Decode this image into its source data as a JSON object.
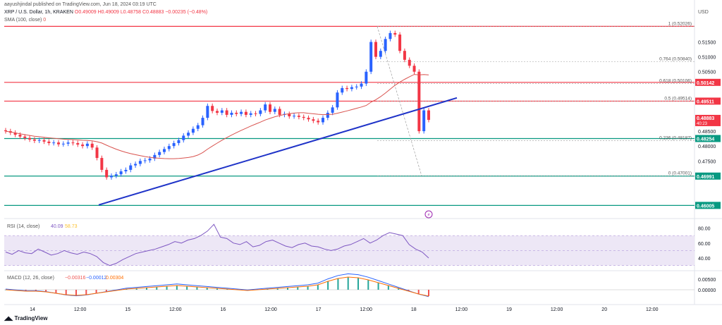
{
  "header": {
    "published_by": "aayushjindal published on TradingView.com, Jun 18, 2024 03:19 UTC",
    "symbol_line": "XRP / U.S. Dollar, 1h, KRAKEN",
    "ohlc": "O0.49009 H0.49009 L0.48758 C0.48883 −0.00235 (−0.48%)",
    "sma_label": "SMA (100, close)",
    "sma_value": "0",
    "currency": "USD"
  },
  "footer": {
    "brand": "TradingView"
  },
  "colors": {
    "up": "#2962ff",
    "down": "#f23645",
    "support": "#089981",
    "resistance": "#f23645",
    "trendline": "#1f33c8",
    "sma": "#d9534f",
    "rsi": "#7e57c2",
    "rsi_band": "#ede7f6",
    "macd": "#2962ff",
    "signal": "#ff6d00"
  },
  "chart_data": [
    {
      "type": "candlestick",
      "title": "XRP / U.S. Dollar, 1h, KRAKEN",
      "ylim": [
        0.458,
        0.522
      ],
      "y_ticks": [
        "0.51500",
        "0.51000",
        "0.50500",
        "0.49000",
        "0.48500",
        "0.48000",
        "0.47500"
      ],
      "x_ticks": [
        "14",
        "12:00",
        "15",
        "12:00",
        "16",
        "12:00",
        "17",
        "12:00",
        "18",
        "12:00",
        "19",
        "12:00",
        "20",
        "12:00"
      ],
      "candles_close": [
        0.485,
        0.4845,
        0.4838,
        0.4832,
        0.4827,
        0.4822,
        0.4818,
        0.482,
        0.4815,
        0.481,
        0.4812,
        0.4806,
        0.4808,
        0.4812,
        0.481,
        0.4805,
        0.48,
        0.4808,
        0.4795,
        0.476,
        0.472,
        0.4695,
        0.47,
        0.4705,
        0.4715,
        0.472,
        0.4735,
        0.474,
        0.475,
        0.4752,
        0.4758,
        0.477,
        0.478,
        0.479,
        0.48,
        0.481,
        0.482,
        0.4835,
        0.4845,
        0.4858,
        0.487,
        0.4895,
        0.4935,
        0.4918,
        0.4912,
        0.492,
        0.4905,
        0.4912,
        0.4908,
        0.4915,
        0.4905,
        0.491,
        0.4908,
        0.492,
        0.494,
        0.4915,
        0.4925,
        0.4905,
        0.4908,
        0.49,
        0.4902,
        0.4898,
        0.4895,
        0.489,
        0.4885,
        0.488,
        0.4895,
        0.4912,
        0.493,
        0.498,
        0.4995,
        0.4992,
        0.4998,
        0.5,
        0.501,
        0.505,
        0.515,
        0.51,
        0.512,
        0.516,
        0.518,
        0.5175,
        0.512,
        0.509,
        0.507,
        0.505,
        0.485,
        0.492,
        0.4888
      ],
      "fib_levels": [
        {
          "label": "1 (0.52026)",
          "value": 0.52026
        },
        {
          "label": "0.764 (0.50840)",
          "value": 0.5084
        },
        {
          "label": "0.618 (0.50106)",
          "value": 0.50106
        },
        {
          "label": "0.5 (0.49514)",
          "value": 0.49514
        },
        {
          "label": "0.236 (0.48187)",
          "value": 0.48187
        },
        {
          "label": "0 (0.47001)",
          "value": 0.47001
        }
      ],
      "horizontal_lines": [
        {
          "value": 0.50142,
          "label": "0.50142",
          "color": "#f23645"
        },
        {
          "value": 0.49511,
          "label": "0.49511",
          "color": "#f23645"
        },
        {
          "value": 0.48254,
          "label": "0.48254",
          "color": "#089981"
        },
        {
          "value": 0.46991,
          "label": "0.46991",
          "color": "#089981"
        },
        {
          "value": 0.46005,
          "label": "0.46005",
          "color": "#089981"
        },
        {
          "value": 0.52026,
          "label": "",
          "color": "#f23645"
        }
      ],
      "price_tag": {
        "value": 0.48883,
        "label": "0.48883",
        "sub": "40:23"
      },
      "trendline": [
        [
          0.4602,
          0.4962
        ]
      ]
    },
    {
      "type": "line",
      "title": "RSI (14, close)",
      "values_text": [
        "40.09",
        "58.73"
      ],
      "y_ticks": [
        "80.00",
        "60.00",
        "40.00"
      ],
      "band": [
        30,
        70
      ],
      "ylim": [
        25,
        88
      ]
    },
    {
      "type": "histogram",
      "title": "MACD (12, 26, close)",
      "values_text": [
        "−0.00316",
        "−0.00012",
        "0.00304"
      ],
      "y_ticks": [
        "0.00500",
        "0.00000"
      ]
    }
  ]
}
